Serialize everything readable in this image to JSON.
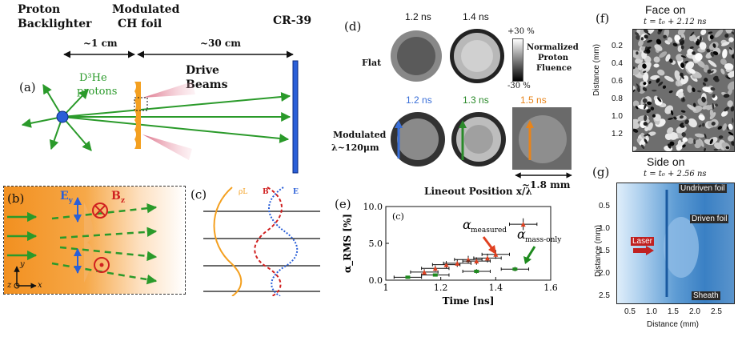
{
  "panel_a": {
    "letter": "(a)",
    "proton_backlighter_line1": "Proton",
    "proton_backlighter_line2": "Backlighter",
    "modulated_line1": "Modulated",
    "modulated_line2": "CH foil",
    "cr39": "CR-39",
    "dist1": "~1 cm",
    "dist2": "~30 cm",
    "d3he_line1": "D³He",
    "d3he_line2": "protons",
    "drive_line1": "Drive",
    "drive_line2": "Beams"
  },
  "panel_b": {
    "letter": "(b)",
    "ey": "E",
    "ey_sub": "y",
    "bz": "B",
    "bz_sub": "z",
    "axis_y": "y",
    "axis_x": "x",
    "axis_z": "z"
  },
  "panel_c": {
    "letter": "(c)",
    "label_rho": "ρL",
    "label_b": "B",
    "label_e": "E"
  },
  "panel_d": {
    "letter": "(d)",
    "row1_label": "Flat",
    "row2_label_line1": "Modulated",
    "row2_label_line2": "λ~120μm",
    "t_flat_1": "1.2 ns",
    "t_flat_2": "1.4 ns",
    "t_mod_1": "1.2 ns",
    "t_mod_2": "1.3 ns",
    "t_mod_3": "1.5 ns",
    "scale_top": "+30 %",
    "scale_bottom": "-30 %",
    "scale_title_1": "Normalized",
    "scale_title_2": "Proton",
    "scale_title_3": "Fluence",
    "size_label": "~1.8 mm",
    "color_t1": "#3a6fd8",
    "color_t2": "#2a8a2a",
    "color_t3": "#e8841a"
  },
  "panel_e": {
    "letter": "(e)",
    "inner_label": "(c)",
    "top_title": "Lineout Position x/λ",
    "alpha_measured": "α",
    "alpha_measured_sub": "measured",
    "alpha_mass": "α",
    "alpha_mass_sub": "mass-only"
  },
  "chart_data": [
    {
      "type": "scatter",
      "title": "",
      "xlabel": "Time [ns]",
      "ylabel": "α_RMS [%]",
      "xlim": [
        1.0,
        1.6
      ],
      "ylim": [
        0.0,
        10.0
      ],
      "xticks": [
        "1",
        "1.2",
        "1.4",
        "1.6"
      ],
      "yticks": [
        "0.0",
        "5.0",
        "10.0"
      ],
      "series": [
        {
          "name": "α measured",
          "color": "#e04020",
          "x": [
            1.14,
            1.18,
            1.22,
            1.26,
            1.3,
            1.33,
            1.37,
            1.4,
            1.5
          ],
          "y": [
            1.1,
            1.6,
            2.1,
            2.3,
            2.8,
            2.6,
            3.0,
            3.5,
            7.6
          ],
          "xerr": 0.05,
          "yerr": [
            0.4,
            0.4,
            0.5,
            0.5,
            0.5,
            0.5,
            0.6,
            0.6,
            0.8
          ]
        },
        {
          "name": "α mass-only",
          "color": "#1e8a1e",
          "x": [
            1.08,
            1.18,
            1.33,
            1.47
          ],
          "y": [
            0.4,
            0.7,
            1.2,
            1.5
          ],
          "xerr": 0.05,
          "yerr": [
            0.2,
            0.2,
            0.3,
            0.3
          ]
        }
      ]
    }
  ],
  "panel_f": {
    "letter": "(f)",
    "title": "Face on",
    "time": "t = t₀ + 2.12 ns",
    "ylabel": "Distance (mm)",
    "yticks": [
      "0.2",
      "0.4",
      "0.6",
      "0.8",
      "1.0",
      "1.2"
    ]
  },
  "panel_g": {
    "letter": "(g)",
    "title": "Side on",
    "time": "t = t₀ + 2.56 ns",
    "ylabel": "Distance (mm)",
    "xlabel": "Distance (mm)",
    "yticks": [
      "0.5",
      "1.0",
      "1.5",
      "2.0",
      "2.5"
    ],
    "xticks": [
      "0.5",
      "1.0",
      "1.5",
      "2.0",
      "2.5"
    ],
    "annot_undriven": "Undriven foil",
    "annot_driven": "Driven foil",
    "annot_laser": "Laser",
    "annot_sheath": "Sheath"
  }
}
